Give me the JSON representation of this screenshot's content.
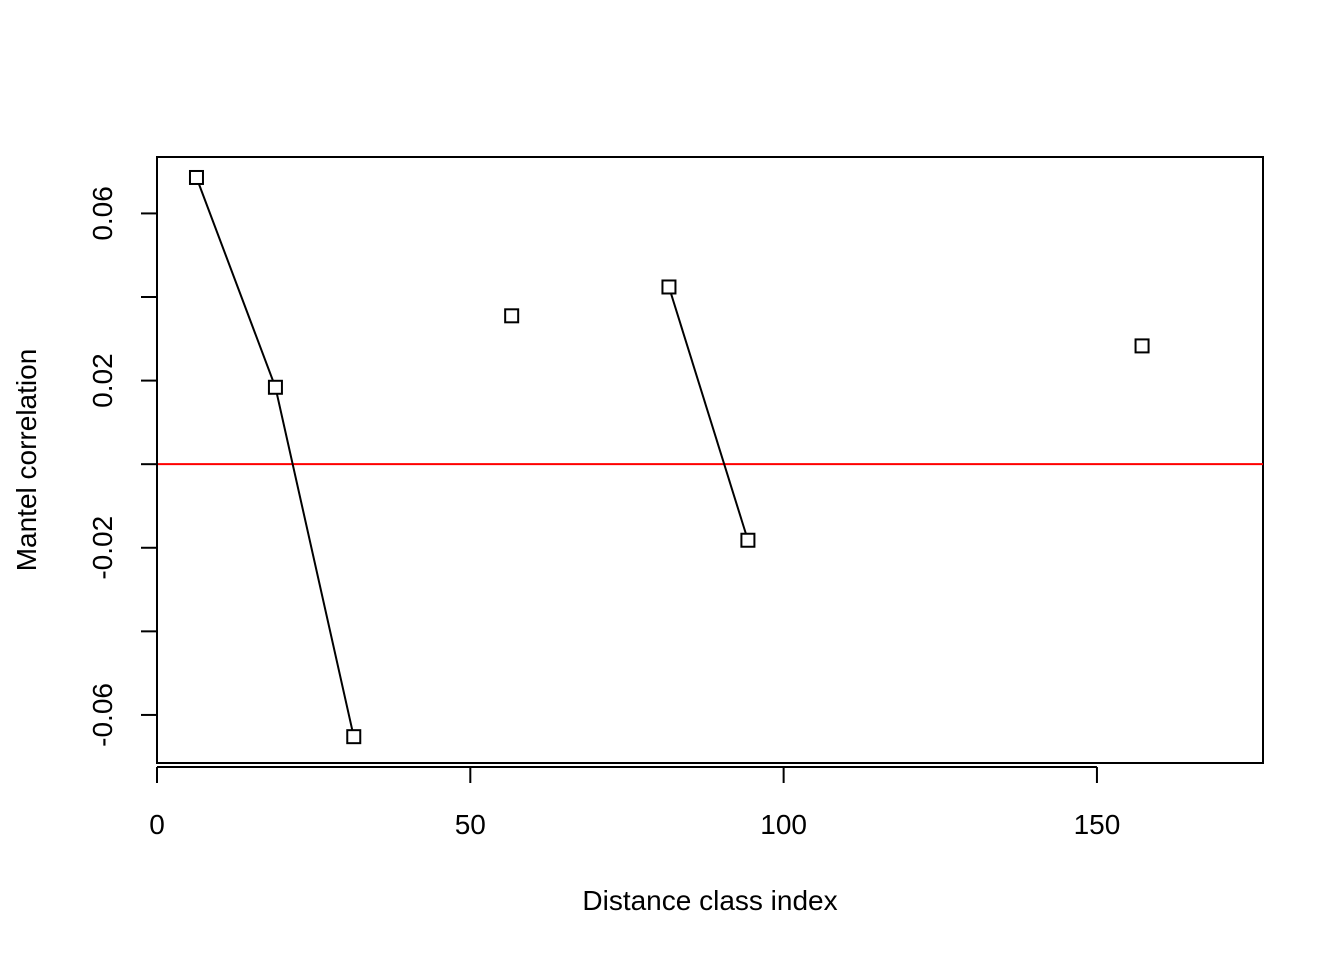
{
  "chart_data": {
    "type": "scatter",
    "title": "",
    "xlabel": "Distance class index",
    "ylabel": "Mantel correlation",
    "xlim": [
      0,
      176.5
    ],
    "ylim": [
      -0.0715,
      0.0735
    ],
    "x_ticks": [
      0,
      50,
      100,
      150
    ],
    "x_tick_labels": [
      "0",
      "50",
      "100",
      "150"
    ],
    "y_ticks": [
      -0.06,
      -0.04,
      -0.02,
      0,
      0.02,
      0.04,
      0.06
    ],
    "y_tick_labels": [
      "-0.06",
      "",
      "-0.02",
      "",
      "0.02",
      "",
      "0.06"
    ],
    "grid": false,
    "marker": "open-square",
    "points": [
      {
        "x": 6.3,
        "y": 0.0686
      },
      {
        "x": 18.9,
        "y": 0.0184
      },
      {
        "x": 31.4,
        "y": -0.0652
      },
      {
        "x": 56.6,
        "y": 0.0355
      },
      {
        "x": 81.7,
        "y": 0.0424
      },
      {
        "x": 94.3,
        "y": -0.0182
      },
      {
        "x": 157.2,
        "y": 0.0283
      }
    ],
    "line_segments": [
      [
        0,
        1,
        2
      ],
      [
        4,
        5
      ]
    ],
    "reference_line": {
      "y": 0,
      "color": "#ff0000"
    },
    "colors": {
      "points": "#000000",
      "reference": "#ff0000",
      "axes": "#000000"
    }
  }
}
